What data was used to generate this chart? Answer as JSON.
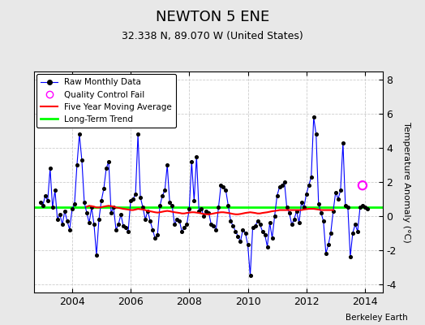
{
  "title": "NEWTON 5 ENE",
  "subtitle": "32.338 N, 89.070 W (United States)",
  "ylabel": "Temperature Anomaly (°C)",
  "credit": "Berkeley Earth",
  "bg_color": "#e8e8e8",
  "plot_bg_color": "#ffffff",
  "ylim": [
    -4.5,
    8.5
  ],
  "xlim": [
    2002.7,
    2014.6
  ],
  "long_term_trend_value": 0.5,
  "qc_fail_x": 2013.917,
  "qc_fail_y": 1.8,
  "raw_data": [
    [
      2002.917,
      0.8
    ],
    [
      2003.0,
      0.6
    ],
    [
      2003.083,
      1.2
    ],
    [
      2003.167,
      0.9
    ],
    [
      2003.25,
      2.8
    ],
    [
      2003.333,
      0.5
    ],
    [
      2003.417,
      1.5
    ],
    [
      2003.5,
      -0.2
    ],
    [
      2003.583,
      0.1
    ],
    [
      2003.667,
      -0.5
    ],
    [
      2003.75,
      0.3
    ],
    [
      2003.833,
      -0.3
    ],
    [
      2003.917,
      -0.8
    ],
    [
      2004.0,
      0.4
    ],
    [
      2004.083,
      0.7
    ],
    [
      2004.167,
      3.0
    ],
    [
      2004.25,
      4.8
    ],
    [
      2004.333,
      3.3
    ],
    [
      2004.417,
      0.8
    ],
    [
      2004.5,
      0.2
    ],
    [
      2004.583,
      -0.4
    ],
    [
      2004.667,
      0.5
    ],
    [
      2004.75,
      -0.5
    ],
    [
      2004.833,
      -2.3
    ],
    [
      2004.917,
      -0.2
    ],
    [
      2005.0,
      0.9
    ],
    [
      2005.083,
      1.6
    ],
    [
      2005.167,
      2.8
    ],
    [
      2005.25,
      3.2
    ],
    [
      2005.333,
      0.2
    ],
    [
      2005.417,
      0.5
    ],
    [
      2005.5,
      -0.8
    ],
    [
      2005.583,
      -0.5
    ],
    [
      2005.667,
      0.1
    ],
    [
      2005.75,
      -0.6
    ],
    [
      2005.833,
      -0.7
    ],
    [
      2005.917,
      -0.9
    ],
    [
      2006.0,
      0.9
    ],
    [
      2006.083,
      1.0
    ],
    [
      2006.167,
      1.3
    ],
    [
      2006.25,
      4.8
    ],
    [
      2006.333,
      1.1
    ],
    [
      2006.417,
      0.5
    ],
    [
      2006.5,
      -0.2
    ],
    [
      2006.583,
      0.3
    ],
    [
      2006.667,
      -0.3
    ],
    [
      2006.75,
      -0.8
    ],
    [
      2006.833,
      -1.3
    ],
    [
      2006.917,
      -1.1
    ],
    [
      2007.0,
      0.6
    ],
    [
      2007.083,
      1.2
    ],
    [
      2007.167,
      1.5
    ],
    [
      2007.25,
      3.0
    ],
    [
      2007.333,
      0.8
    ],
    [
      2007.417,
      0.6
    ],
    [
      2007.5,
      -0.5
    ],
    [
      2007.583,
      -0.2
    ],
    [
      2007.667,
      -0.3
    ],
    [
      2007.75,
      -0.9
    ],
    [
      2007.833,
      -0.7
    ],
    [
      2007.917,
      -0.5
    ],
    [
      2008.0,
      0.4
    ],
    [
      2008.083,
      3.2
    ],
    [
      2008.167,
      0.9
    ],
    [
      2008.25,
      3.5
    ],
    [
      2008.333,
      0.3
    ],
    [
      2008.417,
      0.4
    ],
    [
      2008.5,
      0.0
    ],
    [
      2008.583,
      0.3
    ],
    [
      2008.667,
      0.2
    ],
    [
      2008.75,
      -0.5
    ],
    [
      2008.833,
      -0.6
    ],
    [
      2008.917,
      -0.8
    ],
    [
      2009.0,
      0.5
    ],
    [
      2009.083,
      1.8
    ],
    [
      2009.167,
      1.7
    ],
    [
      2009.25,
      1.5
    ],
    [
      2009.333,
      0.6
    ],
    [
      2009.417,
      -0.3
    ],
    [
      2009.5,
      -0.6
    ],
    [
      2009.583,
      -0.9
    ],
    [
      2009.667,
      -1.2
    ],
    [
      2009.75,
      -1.5
    ],
    [
      2009.833,
      -0.8
    ],
    [
      2009.917,
      -1.0
    ],
    [
      2010.0,
      -1.7
    ],
    [
      2010.083,
      -3.5
    ],
    [
      2010.167,
      -0.7
    ],
    [
      2010.25,
      -0.6
    ],
    [
      2010.333,
      -0.3
    ],
    [
      2010.417,
      -0.5
    ],
    [
      2010.5,
      -0.9
    ],
    [
      2010.583,
      -1.1
    ],
    [
      2010.667,
      -1.8
    ],
    [
      2010.75,
      -0.4
    ],
    [
      2010.833,
      -1.3
    ],
    [
      2010.917,
      0.0
    ],
    [
      2011.0,
      1.2
    ],
    [
      2011.083,
      1.7
    ],
    [
      2011.167,
      1.8
    ],
    [
      2011.25,
      2.0
    ],
    [
      2011.333,
      0.5
    ],
    [
      2011.417,
      0.2
    ],
    [
      2011.5,
      -0.5
    ],
    [
      2011.583,
      -0.2
    ],
    [
      2011.667,
      0.3
    ],
    [
      2011.75,
      -0.4
    ],
    [
      2011.833,
      0.8
    ],
    [
      2011.917,
      0.5
    ],
    [
      2012.0,
      1.3
    ],
    [
      2012.083,
      1.8
    ],
    [
      2012.167,
      2.3
    ],
    [
      2012.25,
      5.8
    ],
    [
      2012.333,
      4.8
    ],
    [
      2012.417,
      0.7
    ],
    [
      2012.5,
      0.2
    ],
    [
      2012.583,
      -0.3
    ],
    [
      2012.667,
      -2.2
    ],
    [
      2012.75,
      -1.7
    ],
    [
      2012.833,
      -1.0
    ],
    [
      2012.917,
      0.3
    ],
    [
      2013.0,
      1.4
    ],
    [
      2013.083,
      1.0
    ],
    [
      2013.167,
      1.5
    ],
    [
      2013.25,
      4.3
    ],
    [
      2013.333,
      0.6
    ],
    [
      2013.417,
      0.5
    ],
    [
      2013.5,
      -2.4
    ],
    [
      2013.583,
      -1.0
    ],
    [
      2013.667,
      -0.5
    ],
    [
      2013.75,
      -0.9
    ],
    [
      2013.833,
      0.5
    ],
    [
      2013.917,
      0.6
    ],
    [
      2014.0,
      0.5
    ],
    [
      2014.083,
      0.4
    ]
  ],
  "moving_avg": [
    [
      2004.5,
      0.55
    ],
    [
      2004.583,
      0.6
    ],
    [
      2004.667,
      0.58
    ],
    [
      2004.75,
      0.55
    ],
    [
      2004.833,
      0.5
    ],
    [
      2004.917,
      0.5
    ],
    [
      2005.0,
      0.52
    ],
    [
      2005.083,
      0.55
    ],
    [
      2005.167,
      0.58
    ],
    [
      2005.25,
      0.6
    ],
    [
      2005.333,
      0.58
    ],
    [
      2005.417,
      0.55
    ],
    [
      2005.5,
      0.5
    ],
    [
      2005.583,
      0.48
    ],
    [
      2005.667,
      0.45
    ],
    [
      2005.75,
      0.42
    ],
    [
      2005.833,
      0.4
    ],
    [
      2005.917,
      0.38
    ],
    [
      2006.0,
      0.35
    ],
    [
      2006.083,
      0.35
    ],
    [
      2006.167,
      0.38
    ],
    [
      2006.25,
      0.42
    ],
    [
      2006.333,
      0.4
    ],
    [
      2006.417,
      0.38
    ],
    [
      2006.5,
      0.35
    ],
    [
      2006.583,
      0.3
    ],
    [
      2006.667,
      0.28
    ],
    [
      2006.75,
      0.25
    ],
    [
      2006.833,
      0.22
    ],
    [
      2006.917,
      0.2
    ],
    [
      2007.0,
      0.22
    ],
    [
      2007.083,
      0.25
    ],
    [
      2007.167,
      0.28
    ],
    [
      2007.25,
      0.3
    ],
    [
      2007.333,
      0.28
    ],
    [
      2007.417,
      0.25
    ],
    [
      2007.5,
      0.22
    ],
    [
      2007.583,
      0.2
    ],
    [
      2007.667,
      0.18
    ],
    [
      2007.75,
      0.15
    ],
    [
      2007.833,
      0.15
    ],
    [
      2007.917,
      0.18
    ],
    [
      2008.0,
      0.2
    ],
    [
      2008.083,
      0.22
    ],
    [
      2008.167,
      0.22
    ],
    [
      2008.25,
      0.2
    ],
    [
      2008.333,
      0.18
    ],
    [
      2008.417,
      0.15
    ],
    [
      2008.5,
      0.12
    ],
    [
      2008.583,
      0.1
    ],
    [
      2008.667,
      0.1
    ],
    [
      2008.75,
      0.12
    ],
    [
      2008.833,
      0.15
    ],
    [
      2008.917,
      0.18
    ],
    [
      2009.0,
      0.2
    ],
    [
      2009.083,
      0.22
    ],
    [
      2009.167,
      0.22
    ],
    [
      2009.25,
      0.2
    ],
    [
      2009.333,
      0.18
    ],
    [
      2009.417,
      0.15
    ],
    [
      2009.5,
      0.12
    ],
    [
      2009.583,
      0.1
    ],
    [
      2009.667,
      0.1
    ],
    [
      2009.75,
      0.12
    ],
    [
      2009.833,
      0.15
    ],
    [
      2009.917,
      0.18
    ],
    [
      2010.0,
      0.2
    ],
    [
      2010.083,
      0.22
    ],
    [
      2010.167,
      0.2
    ],
    [
      2010.25,
      0.18
    ],
    [
      2010.333,
      0.15
    ],
    [
      2010.417,
      0.15
    ],
    [
      2010.5,
      0.18
    ],
    [
      2010.583,
      0.2
    ],
    [
      2010.667,
      0.22
    ],
    [
      2010.75,
      0.25
    ],
    [
      2010.833,
      0.28
    ],
    [
      2010.917,
      0.3
    ],
    [
      2011.0,
      0.32
    ],
    [
      2011.083,
      0.35
    ],
    [
      2011.167,
      0.35
    ],
    [
      2011.25,
      0.35
    ],
    [
      2011.333,
      0.35
    ],
    [
      2011.417,
      0.35
    ],
    [
      2011.5,
      0.35
    ],
    [
      2011.583,
      0.35
    ],
    [
      2011.667,
      0.35
    ],
    [
      2011.75,
      0.35
    ],
    [
      2011.833,
      0.35
    ],
    [
      2011.917,
      0.38
    ],
    [
      2012.0,
      0.4
    ],
    [
      2012.083,
      0.42
    ],
    [
      2012.167,
      0.42
    ],
    [
      2012.25,
      0.42
    ],
    [
      2012.333,
      0.4
    ],
    [
      2012.417,
      0.38
    ],
    [
      2012.5,
      0.35
    ],
    [
      2012.583,
      0.35
    ],
    [
      2012.667,
      0.35
    ],
    [
      2012.75,
      0.35
    ],
    [
      2012.833,
      0.35
    ],
    [
      2012.917,
      0.35
    ]
  ]
}
